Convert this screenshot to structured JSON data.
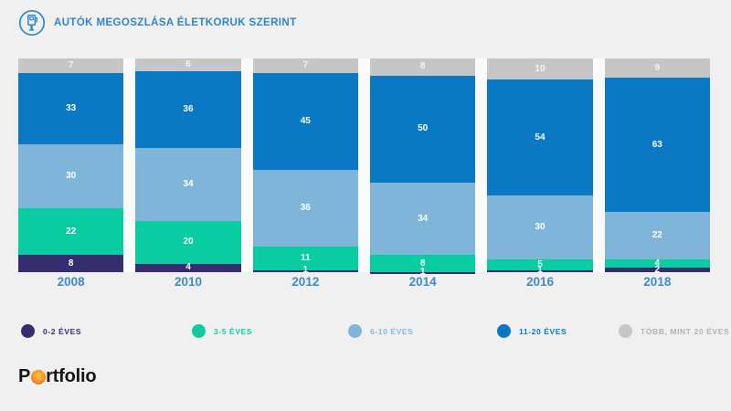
{
  "header": {
    "title": "AUTÓK MEGOSZLÁSA ÉLETKORUK SZERINT",
    "icon": "fuel-pump-icon",
    "accent_color": "#2e86cb"
  },
  "chart_data": {
    "type": "bar",
    "stacked": true,
    "title": "AUTÓK MEGOSZLÁSA ÉLETKORUK SZERINT",
    "categories": [
      "2008",
      "2010",
      "2012",
      "2014",
      "2016",
      "2018"
    ],
    "series": [
      {
        "name": "0-2 ÉVES",
        "color": "#362d71",
        "label_color": "#362d71",
        "values": [
          8,
          4,
          1,
          1,
          1,
          2
        ]
      },
      {
        "name": "3-5 ÉVES",
        "color": "#09cda0",
        "label_color": "#0bcfa0",
        "values": [
          22,
          20,
          11,
          8,
          5,
          4
        ]
      },
      {
        "name": "6-10 ÉVES",
        "color": "#80b5da",
        "label_color": "#85b8dc",
        "values": [
          30,
          34,
          36,
          34,
          30,
          22
        ]
      },
      {
        "name": "11-20 ÉVES",
        "color": "#0b78c3",
        "label_color": "#0b78c3",
        "values": [
          33,
          36,
          45,
          50,
          54,
          63
        ]
      },
      {
        "name": "TÖBB, MINT 20 ÉVES",
        "color": "#c6c6c6",
        "label_color": "#b2b2b2",
        "values": [
          7,
          6,
          7,
          8,
          10,
          9
        ]
      }
    ],
    "ylim": [
      0,
      100
    ],
    "value_labels": "inside",
    "grid": false,
    "legend_position": "bottom"
  },
  "footer": {
    "logo_p": "P",
    "logo_rest": "rtfolio",
    "logo_o_color": "#ef7113"
  }
}
